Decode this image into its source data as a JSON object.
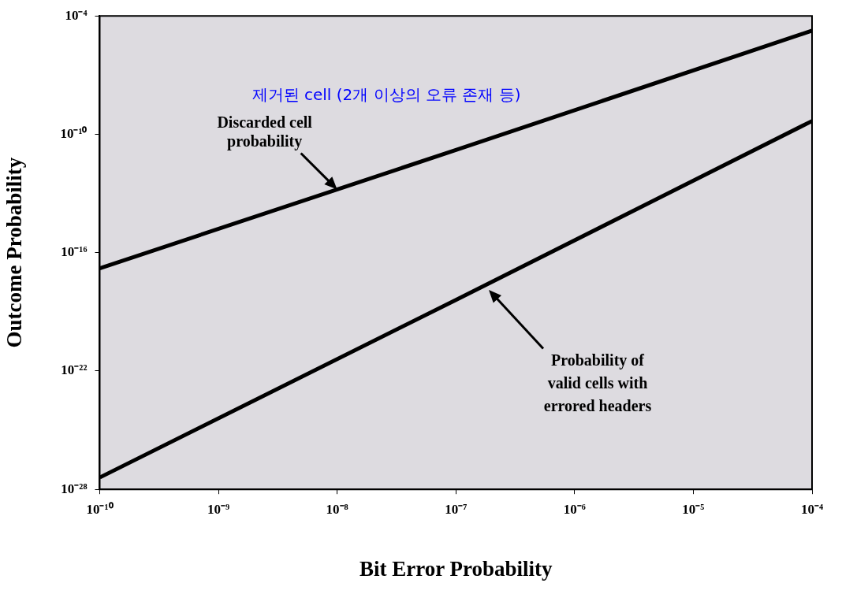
{
  "chart_data": {
    "type": "line",
    "xlabel": "Bit Error Probability",
    "ylabel": "Outcome Probability",
    "log": "xy",
    "grid": false,
    "legend": false,
    "marker": "none",
    "line_style": "solid",
    "xlim": [
      1e-10,
      0.0001
    ],
    "xticks": [
      {
        "value": 1e-10,
        "label": "10⁻¹⁰"
      },
      {
        "value": 1e-09,
        "label": "10⁻⁹"
      },
      {
        "value": 1e-08,
        "label": "10⁻⁸"
      },
      {
        "value": 1e-07,
        "label": "10⁻⁷"
      },
      {
        "value": 1e-06,
        "label": "10⁻⁶"
      },
      {
        "value": 1e-05,
        "label": "10⁻⁵"
      },
      {
        "value": 0.0001,
        "label": "10⁻⁴"
      }
    ],
    "ylim": [
      1e-28,
      0.0001
    ],
    "yticks": [
      {
        "value": 1e-28,
        "label": "10⁻²⁸"
      },
      {
        "value": 1e-22,
        "label": "10⁻²²"
      },
      {
        "value": 1e-16,
        "label": "10⁻¹⁶"
      },
      {
        "value": 1e-10,
        "label": "10⁻¹⁰"
      },
      {
        "value": 0.0001,
        "label": "10⁻⁴"
      }
    ],
    "series": [
      {
        "color": "#000000",
        "x": [
          1e-10,
          1e-07,
          0.0001
        ],
        "values": [
          1.6e-17,
          1.6e-11,
          1.8e-05
        ]
      },
      {
        "color": "#000000",
        "x": [
          1e-10,
          1e-07,
          0.0001
        ],
        "values": [
          4e-28,
          4e-19,
          4.7e-10
        ]
      }
    ],
    "annotations": [
      "제거된 cell (2개 이상의 오류 존재 등)",
      {
        "text": "Discarded cell probability",
        "x": 1e-08,
        "y": 1.6e-13
      },
      "Probability of valid cells with errored headers"
    ]
  }
}
